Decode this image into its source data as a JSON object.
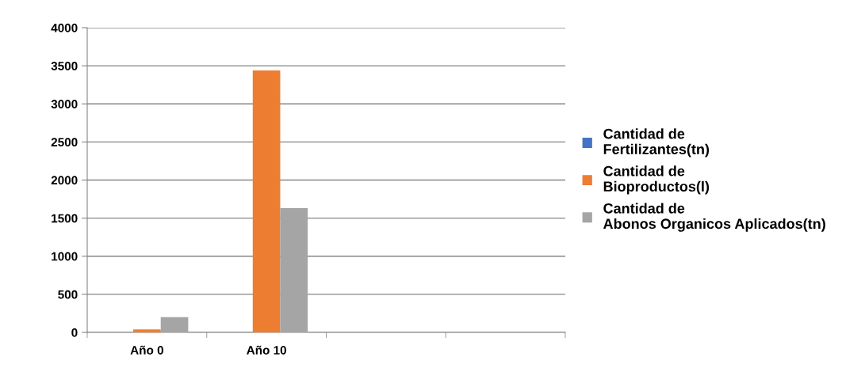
{
  "chart_data": {
    "type": "bar",
    "categories": [
      "Año 0",
      "Año 10",
      null,
      null
    ],
    "series": [
      {
        "name": "Cantidad de Fertilizantes(tn)",
        "color": "#4472c4",
        "values": [
          0,
          0,
          null,
          null
        ]
      },
      {
        "name": "Cantidad de Bioproductos(l)",
        "color": "#ed7d31",
        "values": [
          40,
          3440,
          null,
          null
        ]
      },
      {
        "name": "Cantidad de Abonos Organicos Aplicados(tn)",
        "color": "#a5a5a5",
        "values": [
          200,
          1630,
          null,
          null
        ]
      }
    ],
    "ylim": [
      0,
      4000
    ],
    "yticks": [
      0,
      500,
      1000,
      1500,
      2000,
      2500,
      3000,
      3500,
      4000
    ],
    "grid": "y",
    "legend": "right"
  }
}
